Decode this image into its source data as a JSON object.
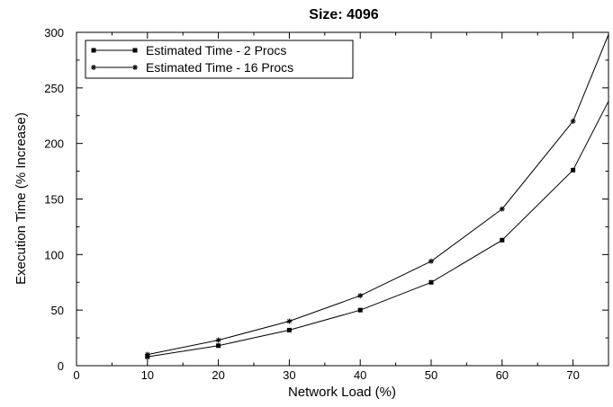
{
  "chart_data": {
    "type": "line",
    "title": "Size: 4096",
    "xlabel": "Network Load (%)",
    "ylabel": "Execution Time (% Increase)",
    "xlim": [
      0,
      75
    ],
    "ylim": [
      0,
      300
    ],
    "xticks": [
      0,
      10,
      20,
      30,
      40,
      50,
      60,
      70
    ],
    "yticks": [
      0,
      50,
      100,
      150,
      200,
      250,
      300
    ],
    "grid": false,
    "legend_position": "top-left",
    "series": [
      {
        "name": "Estimated Time - 2 Procs",
        "marker": "square",
        "color": "#000000",
        "x": [
          10,
          20,
          30,
          40,
          50,
          60,
          70,
          75
        ],
        "y": [
          8,
          18,
          32,
          50,
          75,
          113,
          176,
          238
        ],
        "marker_points": 7
      },
      {
        "name": "Estimated Time - 16 Procs",
        "marker": "star",
        "color": "#000000",
        "x": [
          10,
          20,
          30,
          40,
          50,
          60,
          70,
          75
        ],
        "y": [
          10,
          23,
          40,
          63,
          94,
          141,
          220,
          298
        ],
        "marker_points": 7
      }
    ]
  }
}
